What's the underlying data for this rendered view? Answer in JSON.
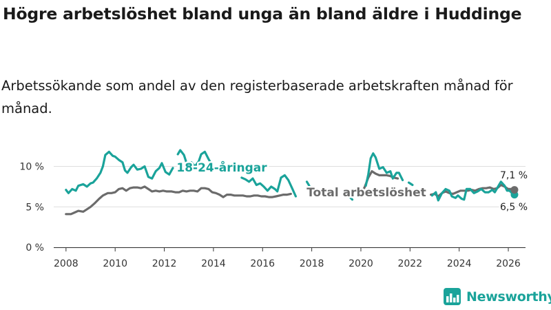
{
  "title": "Högre arbetslöshet bland unga än bland äldre i Huddinge",
  "subtitle": "Arbetssökande som andel av den registerbaserade arbetskraften månad för månad.",
  "brand": "Newsworthy",
  "colors": {
    "youth": "#1aa39a",
    "total": "#6b6b6b",
    "grid": "#dddddd"
  },
  "chart_data": {
    "type": "line",
    "title": "Högre arbetslöshet bland unga än bland äldre i Huddinge",
    "ylabel": "",
    "xlabel": "",
    "ylim": [
      0,
      12
    ],
    "xlim": [
      2007.5,
      2026.7
    ],
    "yticks": [
      0,
      5,
      10
    ],
    "ytick_labels": [
      "0 %",
      "5 %",
      "10 %"
    ],
    "xticks": [
      "2008",
      "2010",
      "2012",
      "2014",
      "2016",
      "2018",
      "2020",
      "2022",
      "2024",
      "2026"
    ],
    "series": [
      {
        "name": "18-24-åringar",
        "label": "18-24-åringar",
        "color": "#1aa39a",
        "end_label": "6,5 %",
        "segments": [
          [
            [
              2008.0,
              7.1
            ],
            [
              2008.1,
              6.7
            ],
            [
              2008.25,
              7.2
            ],
            [
              2008.4,
              7.0
            ],
            [
              2008.5,
              7.6
            ],
            [
              2008.7,
              7.8
            ],
            [
              2008.85,
              7.5
            ],
            [
              2009.0,
              7.9
            ],
            [
              2009.1,
              8.0
            ],
            [
              2009.25,
              8.5
            ],
            [
              2009.4,
              9.2
            ],
            [
              2009.5,
              10.0
            ],
            [
              2009.6,
              11.4
            ],
            [
              2009.75,
              11.8
            ],
            [
              2009.9,
              11.3
            ],
            [
              2010.0,
              11.2
            ],
            [
              2010.15,
              10.8
            ],
            [
              2010.3,
              10.5
            ],
            [
              2010.4,
              9.5
            ],
            [
              2010.5,
              9.2
            ],
            [
              2010.65,
              9.9
            ],
            [
              2010.75,
              10.2
            ],
            [
              2010.9,
              9.6
            ],
            [
              2011.05,
              9.7
            ],
            [
              2011.2,
              10.0
            ],
            [
              2011.35,
              8.7
            ],
            [
              2011.5,
              8.5
            ],
            [
              2011.65,
              9.4
            ],
            [
              2011.8,
              9.8
            ],
            [
              2011.9,
              10.4
            ],
            [
              2012.05,
              9.3
            ],
            [
              2012.2,
              9.0
            ],
            [
              2012.35,
              9.8
            ]
          ],
          [
            [
              2012.55,
              11.5
            ],
            [
              2012.65,
              12.0
            ],
            [
              2012.8,
              11.4
            ],
            [
              2012.95,
              10.0
            ],
            [
              2013.1,
              10.5
            ],
            [
              2013.25,
              10.0
            ],
            [
              2013.4,
              10.6
            ],
            [
              2013.5,
              11.5
            ],
            [
              2013.65,
              11.8
            ],
            [
              2013.8,
              10.9
            ],
            [
              2013.95,
              10.1
            ]
          ],
          [
            [
              2015.15,
              8.6
            ],
            [
              2015.3,
              8.4
            ],
            [
              2015.45,
              8.1
            ],
            [
              2015.6,
              8.5
            ],
            [
              2015.75,
              7.7
            ],
            [
              2015.9,
              7.9
            ],
            [
              2016.05,
              7.5
            ],
            [
              2016.2,
              7.0
            ],
            [
              2016.35,
              7.5
            ],
            [
              2016.5,
              7.2
            ],
            [
              2016.6,
              6.9
            ],
            [
              2016.75,
              8.6
            ],
            [
              2016.9,
              8.9
            ],
            [
              2017.05,
              8.3
            ],
            [
              2017.2,
              7.3
            ],
            [
              2017.35,
              6.3
            ]
          ],
          [
            [
              2017.8,
              8.1
            ],
            [
              2017.9,
              7.6
            ]
          ],
          [
            [
              2019.55,
              6.2
            ],
            [
              2019.65,
              5.9
            ]
          ],
          [
            [
              2020.2,
              7.6
            ],
            [
              2020.3,
              9.0
            ],
            [
              2020.4,
              11.0
            ],
            [
              2020.5,
              11.6
            ],
            [
              2020.6,
              11.1
            ],
            [
              2020.75,
              9.7
            ],
            [
              2020.9,
              9.9
            ],
            [
              2021.05,
              9.2
            ],
            [
              2021.2,
              9.4
            ],
            [
              2021.3,
              8.5
            ],
            [
              2021.45,
              9.2
            ],
            [
              2021.55,
              9.2
            ],
            [
              2021.7,
              8.3
            ]
          ],
          [
            [
              2021.95,
              8.0
            ],
            [
              2022.1,
              7.7
            ]
          ],
          [
            [
              2022.9,
              6.4
            ],
            [
              2023.05,
              6.8
            ],
            [
              2023.15,
              5.8
            ],
            [
              2023.3,
              6.7
            ],
            [
              2023.45,
              7.2
            ],
            [
              2023.6,
              7.0
            ],
            [
              2023.7,
              6.3
            ],
            [
              2023.85,
              6.1
            ],
            [
              2023.95,
              6.4
            ],
            [
              2024.1,
              6.0
            ],
            [
              2024.2,
              5.9
            ],
            [
              2024.3,
              7.2
            ],
            [
              2024.45,
              7.2
            ],
            [
              2024.6,
              6.7
            ],
            [
              2024.75,
              6.9
            ],
            [
              2024.9,
              7.2
            ],
            [
              2025.05,
              6.8
            ],
            [
              2025.2,
              6.8
            ],
            [
              2025.35,
              7.1
            ],
            [
              2025.45,
              6.8
            ],
            [
              2025.6,
              7.6
            ],
            [
              2025.7,
              8.1
            ],
            [
              2025.85,
              7.6
            ],
            [
              2025.95,
              7.0
            ],
            [
              2026.05,
              7.0
            ],
            [
              2026.15,
              6.7
            ],
            [
              2026.25,
              6.5
            ]
          ]
        ]
      },
      {
        "name": "Total arbetslöshet",
        "label": "Total arbetslöshet",
        "color": "#6b6b6b",
        "end_label": "7,1 %",
        "segments": [
          [
            [
              2008.0,
              4.1
            ],
            [
              2008.2,
              4.1
            ],
            [
              2008.35,
              4.3
            ],
            [
              2008.5,
              4.5
            ],
            [
              2008.7,
              4.4
            ],
            [
              2008.85,
              4.7
            ],
            [
              2009.0,
              5.0
            ],
            [
              2009.15,
              5.4
            ],
            [
              2009.35,
              6.0
            ],
            [
              2009.5,
              6.4
            ],
            [
              2009.7,
              6.7
            ],
            [
              2009.85,
              6.7
            ],
            [
              2010.0,
              6.8
            ],
            [
              2010.15,
              7.2
            ],
            [
              2010.3,
              7.3
            ],
            [
              2010.45,
              7.0
            ],
            [
              2010.6,
              7.3
            ],
            [
              2010.75,
              7.4
            ],
            [
              2010.9,
              7.4
            ],
            [
              2011.05,
              7.3
            ],
            [
              2011.2,
              7.5
            ],
            [
              2011.35,
              7.2
            ],
            [
              2011.5,
              6.9
            ],
            [
              2011.65,
              7.0
            ],
            [
              2011.8,
              6.9
            ],
            [
              2011.95,
              7.0
            ],
            [
              2012.1,
              6.9
            ],
            [
              2012.3,
              6.9
            ],
            [
              2012.45,
              6.8
            ],
            [
              2012.6,
              6.8
            ],
            [
              2012.75,
              7.0
            ],
            [
              2012.9,
              6.9
            ],
            [
              2013.05,
              7.0
            ],
            [
              2013.2,
              7.0
            ],
            [
              2013.35,
              6.9
            ],
            [
              2013.5,
              7.3
            ],
            [
              2013.65,
              7.3
            ],
            [
              2013.8,
              7.2
            ],
            [
              2013.95,
              6.8
            ],
            [
              2014.1,
              6.7
            ],
            [
              2014.25,
              6.5
            ],
            [
              2014.4,
              6.2
            ],
            [
              2014.55,
              6.5
            ],
            [
              2014.7,
              6.5
            ],
            [
              2014.85,
              6.4
            ],
            [
              2015.0,
              6.4
            ],
            [
              2015.2,
              6.4
            ],
            [
              2015.35,
              6.3
            ],
            [
              2015.5,
              6.3
            ],
            [
              2015.65,
              6.4
            ],
            [
              2015.8,
              6.4
            ],
            [
              2015.95,
              6.3
            ],
            [
              2016.1,
              6.3
            ],
            [
              2016.25,
              6.2
            ],
            [
              2016.4,
              6.2
            ],
            [
              2016.55,
              6.3
            ],
            [
              2016.7,
              6.4
            ],
            [
              2016.85,
              6.5
            ],
            [
              2017.0,
              6.5
            ],
            [
              2017.15,
              6.6
            ]
          ],
          [
            [
              2020.0,
              6.7
            ],
            [
              2020.15,
              7.4
            ],
            [
              2020.3,
              8.6
            ],
            [
              2020.45,
              9.4
            ],
            [
              2020.6,
              9.1
            ],
            [
              2020.75,
              8.9
            ],
            [
              2020.9,
              8.9
            ],
            [
              2021.05,
              8.9
            ],
            [
              2021.2,
              8.8
            ],
            [
              2021.35,
              8.6
            ],
            [
              2021.5,
              8.5
            ]
          ],
          [
            [
              2022.85,
              6.5
            ],
            [
              2023.0,
              6.6
            ],
            [
              2023.15,
              6.3
            ],
            [
              2023.3,
              6.7
            ],
            [
              2023.45,
              6.9
            ],
            [
              2023.6,
              6.7
            ],
            [
              2023.75,
              6.6
            ],
            [
              2023.9,
              6.8
            ],
            [
              2024.05,
              7.0
            ],
            [
              2024.2,
              7.0
            ],
            [
              2024.35,
              7.0
            ],
            [
              2024.5,
              7.1
            ],
            [
              2024.65,
              7.0
            ],
            [
              2024.8,
              7.2
            ],
            [
              2024.95,
              7.3
            ],
            [
              2025.1,
              7.3
            ],
            [
              2025.25,
              7.4
            ],
            [
              2025.4,
              7.2
            ],
            [
              2025.55,
              7.3
            ],
            [
              2025.7,
              7.7
            ],
            [
              2025.85,
              7.5
            ],
            [
              2026.0,
              7.2
            ],
            [
              2026.15,
              7.2
            ],
            [
              2026.25,
              7.1
            ]
          ]
        ]
      }
    ]
  }
}
